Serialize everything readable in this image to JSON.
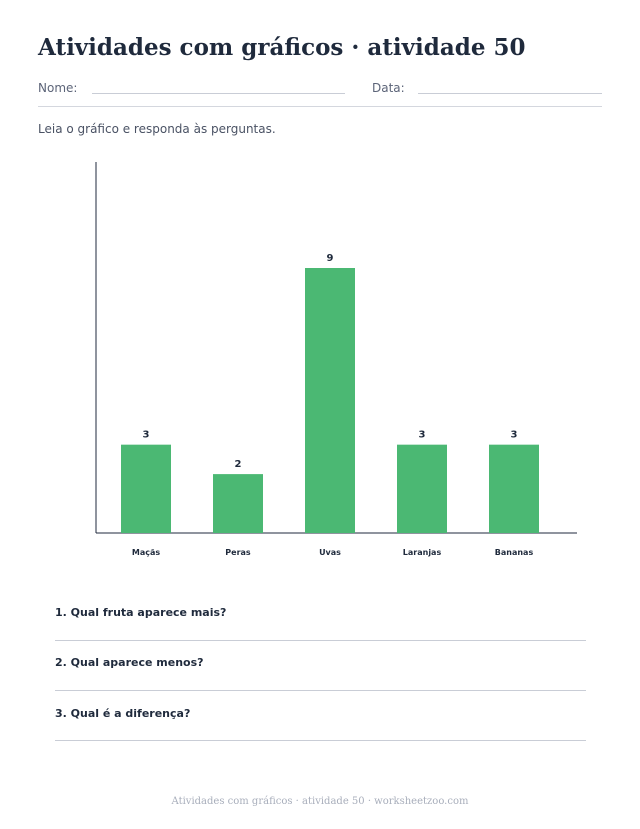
{
  "header": {
    "title": "Atividades com gráficos · atividade 50",
    "name_label": "Nome:",
    "date_label": "Data:"
  },
  "instructions": "Leia o gráfico e responda às perguntas.",
  "chart_data": {
    "type": "bar",
    "categories": [
      "Maçãs",
      "Peras",
      "Uvas",
      "Laranjas",
      "Bananas"
    ],
    "values": [
      3,
      2,
      9,
      3,
      3
    ],
    "title": "",
    "xlabel": "",
    "ylabel": "",
    "ylim": [
      0,
      12.6
    ],
    "grid": false,
    "data_labels": true,
    "colors": {
      "bar": "#4bb873",
      "axis": "#1f2a3c"
    }
  },
  "questions": [
    {
      "text": "1. Qual fruta aparece mais?"
    },
    {
      "text": "2. Qual aparece menos?"
    },
    {
      "text": "3. Qual é a diferença?"
    }
  ],
  "footer": "Atividades com gráficos · atividade 50 · worksheetzoo.com"
}
